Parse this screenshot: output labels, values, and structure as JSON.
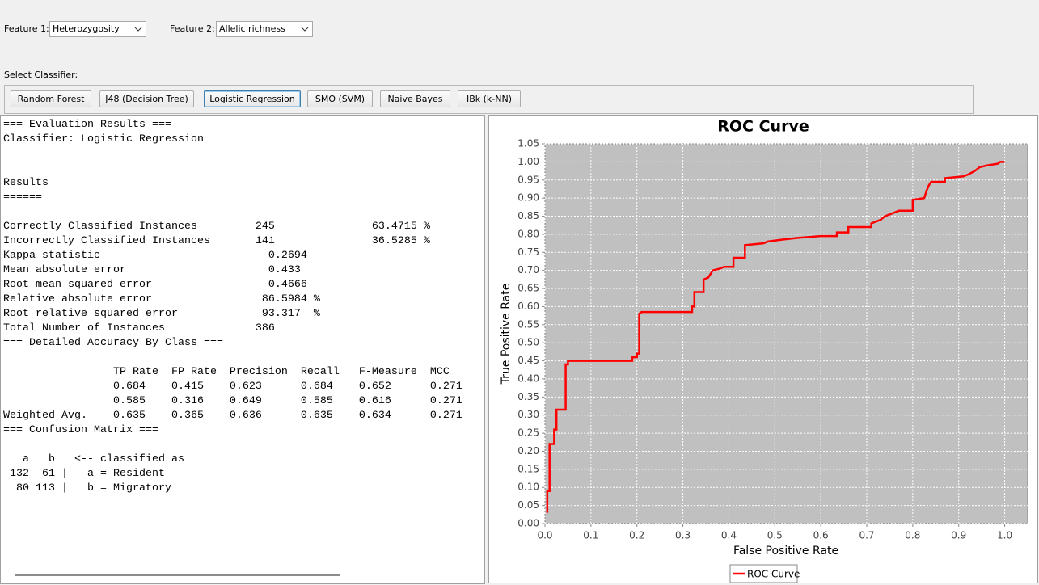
{
  "controls": {
    "feature1_label": "Feature 1:",
    "feature1_value": "Heterozygosity",
    "feature2_label": "Feature 2:",
    "feature2_value": "Allelic richness",
    "classifier_label": "Select Classifier:",
    "classifiers": [
      "Random Forest",
      "J48 (Decision Tree)",
      "Logistic Regression",
      "SMO (SVM)",
      "Naive Bayes",
      "IBk (k-NN)"
    ]
  },
  "output": {
    "blocks": [
      [
        "=== Evaluation Results ===",
        "Classifier: Logistic Regression"
      ],
      [
        "Results",
        "======"
      ],
      [
        "Correctly Classified Instances         245               63.4715 %",
        "Incorrectly Classified Instances       141               36.5285 %",
        "Kappa statistic                          0.2694",
        "Mean absolute error                      0.433",
        "Root mean squared error                  0.4666",
        "Relative absolute error                 86.5984 %",
        "Root relative squared error             93.317  %",
        "Total Number of Instances              386",
        "=== Detailed Accuracy By Class ==="
      ],
      [
        "                 TP Rate  FP Rate  Precision  Recall   F-Measure  MCC",
        "                 0.684    0.415    0.623      0.684    0.652      0.271",
        "                 0.585    0.316    0.649      0.585    0.616      0.271",
        "Weighted Avg.    0.635    0.365    0.636      0.635    0.634      0.271",
        "=== Confusion Matrix ==="
      ],
      [
        "   a   b   <-- classified as",
        " 132  61 |   a = Resident",
        "  80 113 |   b = Migratory"
      ]
    ]
  },
  "chart_data": {
    "type": "line",
    "title": "ROC Curve",
    "x_label": "False Positive Rate",
    "y_label": "True Positive Rate",
    "x": [
      0.005,
      0.005,
      0.01,
      0.01,
      0.02,
      0.02,
      0.025,
      0.025,
      0.045,
      0.045,
      0.05,
      0.05,
      0.19,
      0.19,
      0.2,
      0.2,
      0.205,
      0.205,
      0.21,
      0.32,
      0.32,
      0.325,
      0.325,
      0.345,
      0.345,
      0.355,
      0.36,
      0.365,
      0.38,
      0.39,
      0.41,
      0.41,
      0.435,
      0.435,
      0.475,
      0.485,
      0.515,
      0.55,
      0.6,
      0.635,
      0.635,
      0.66,
      0.66,
      0.71,
      0.71,
      0.73,
      0.74,
      0.75,
      0.77,
      0.8,
      0.8,
      0.825,
      0.83,
      0.835,
      0.84,
      0.87,
      0.87,
      0.91,
      0.92,
      0.935,
      0.945,
      0.96,
      0.985,
      0.99,
      1.0
    ],
    "series": [
      {
        "name": "ROC Curve",
        "color": "#ff0000",
        "values": [
          0.03,
          0.09,
          0.09,
          0.22,
          0.22,
          0.26,
          0.26,
          0.315,
          0.315,
          0.44,
          0.44,
          0.45,
          0.45,
          0.46,
          0.46,
          0.47,
          0.47,
          0.58,
          0.585,
          0.585,
          0.6,
          0.6,
          0.64,
          0.64,
          0.675,
          0.68,
          0.69,
          0.7,
          0.705,
          0.71,
          0.71,
          0.735,
          0.735,
          0.77,
          0.775,
          0.78,
          0.785,
          0.79,
          0.795,
          0.795,
          0.805,
          0.805,
          0.82,
          0.82,
          0.83,
          0.84,
          0.85,
          0.855,
          0.865,
          0.865,
          0.895,
          0.9,
          0.92,
          0.935,
          0.945,
          0.945,
          0.955,
          0.96,
          0.965,
          0.975,
          0.985,
          0.99,
          0.995,
          1.0,
          1.0
        ]
      }
    ],
    "xlim": [
      0,
      1.05
    ],
    "ylim": [
      0,
      1.05
    ],
    "xticks": [
      {
        "value": 0,
        "label": "0.0"
      },
      0.1,
      0.2,
      0.3,
      0.4,
      0.5,
      0.6,
      0.7,
      0.8,
      0.9,
      {
        "value": 1,
        "label": "1.0"
      }
    ],
    "yticks": [
      {
        "value": 0,
        "label": "0.00"
      },
      0.05,
      {
        "value": 0.1,
        "label": "0.10"
      },
      0.15,
      {
        "value": 0.2,
        "label": "0.20"
      },
      0.25,
      {
        "value": 0.3,
        "label": "0.30"
      },
      0.35,
      {
        "value": 0.4,
        "label": "0.40"
      },
      0.45,
      {
        "value": 0.5,
        "label": "0.50"
      },
      0.55,
      {
        "value": 0.6,
        "label": "0.60"
      },
      0.65,
      {
        "value": 0.7,
        "label": "0.70"
      },
      0.75,
      {
        "value": 0.8,
        "label": "0.80"
      },
      0.85,
      {
        "value": 0.9,
        "label": "0.90"
      },
      0.95,
      {
        "value": 1,
        "label": "1.00"
      },
      1.05
    ],
    "grid": true,
    "legend": "bottom"
  }
}
